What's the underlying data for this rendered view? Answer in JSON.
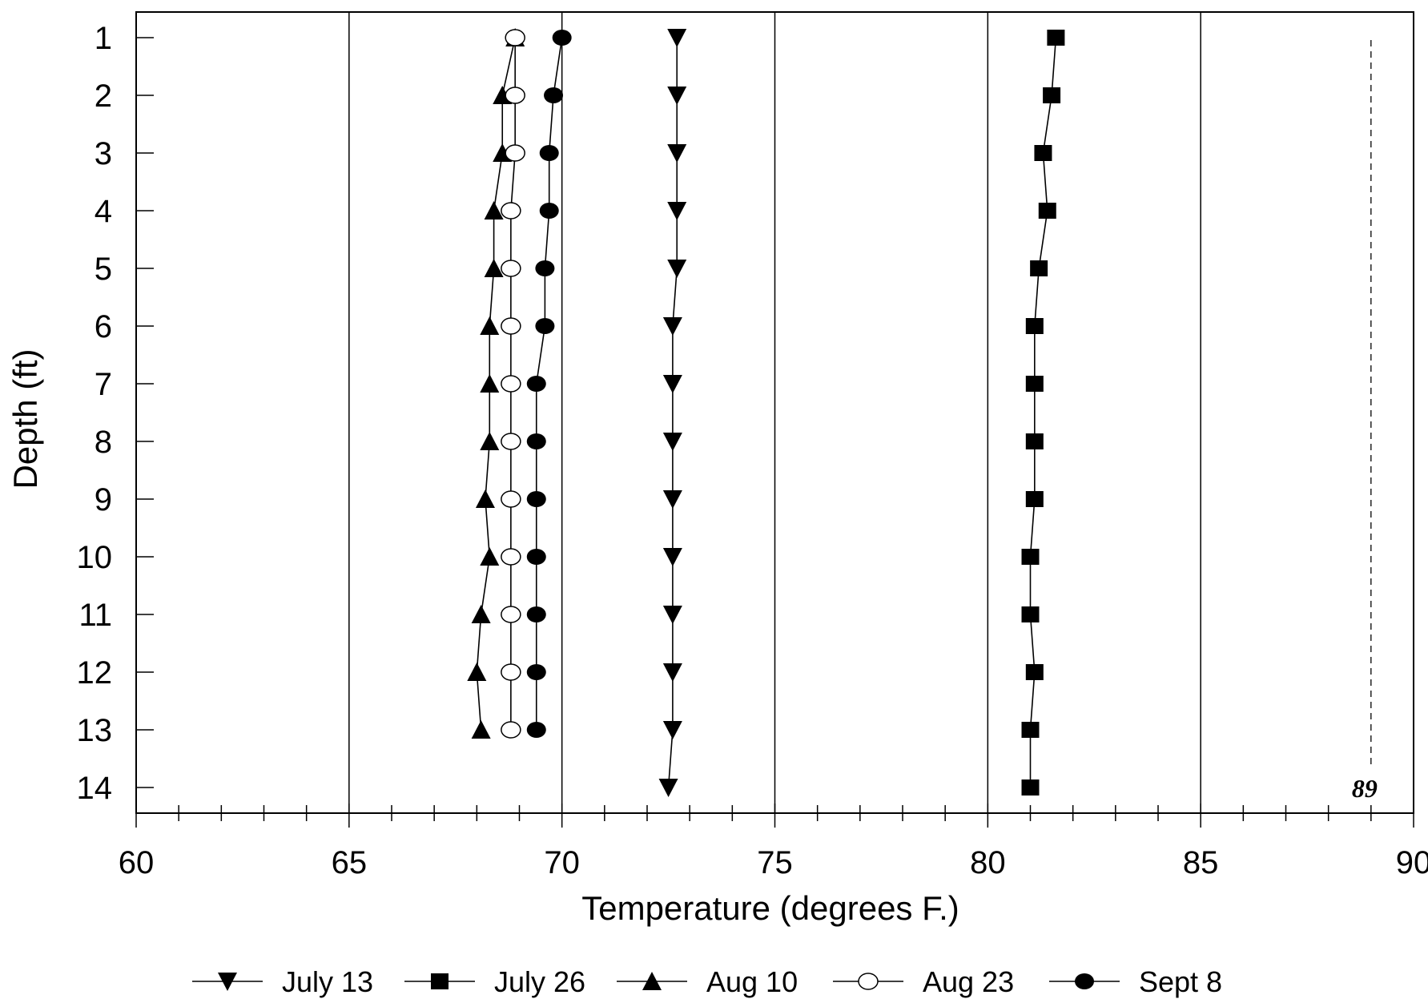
{
  "chart_data": {
    "type": "line",
    "title": "",
    "xlabel": "Temperature (degrees F.)",
    "ylabel": "Depth (ft)",
    "xlim": [
      60,
      90
    ],
    "ylim": [
      14,
      1
    ],
    "x_ticks": [
      60,
      65,
      70,
      75,
      80,
      85,
      90
    ],
    "y_ticks": [
      1,
      2,
      3,
      4,
      5,
      6,
      7,
      8,
      9,
      10,
      11,
      12,
      13,
      14
    ],
    "grid": "vertical major",
    "legend_position": "bottom",
    "series": [
      {
        "name": "July 13",
        "marker": "triangle-down",
        "color": "#000000",
        "points": [
          [
            72.7,
            1
          ],
          [
            72.7,
            2
          ],
          [
            72.7,
            3
          ],
          [
            72.7,
            4
          ],
          [
            72.7,
            5
          ],
          [
            72.6,
            6
          ],
          [
            72.6,
            7
          ],
          [
            72.6,
            8
          ],
          [
            72.6,
            9
          ],
          [
            72.6,
            10
          ],
          [
            72.6,
            11
          ],
          [
            72.6,
            12
          ],
          [
            72.6,
            13
          ],
          [
            72.5,
            14
          ]
        ]
      },
      {
        "name": "July 26",
        "marker": "square",
        "color": "#000000",
        "points": [
          [
            81.6,
            1
          ],
          [
            81.5,
            2
          ],
          [
            81.3,
            3
          ],
          [
            81.4,
            4
          ],
          [
            81.2,
            5
          ],
          [
            81.1,
            6
          ],
          [
            81.1,
            7
          ],
          [
            81.1,
            8
          ],
          [
            81.1,
            9
          ],
          [
            81.0,
            10
          ],
          [
            81.0,
            11
          ],
          [
            81.1,
            12
          ],
          [
            81.0,
            13
          ],
          [
            81.0,
            14
          ]
        ]
      },
      {
        "name": "Aug 10",
        "marker": "triangle-up",
        "color": "#000000",
        "points": [
          [
            68.9,
            1
          ],
          [
            68.6,
            2
          ],
          [
            68.6,
            3
          ],
          [
            68.4,
            4
          ],
          [
            68.4,
            5
          ],
          [
            68.3,
            6
          ],
          [
            68.3,
            7
          ],
          [
            68.3,
            8
          ],
          [
            68.2,
            9
          ],
          [
            68.3,
            10
          ],
          [
            68.1,
            11
          ],
          [
            68.0,
            12
          ],
          [
            68.1,
            13
          ]
        ]
      },
      {
        "name": "Aug 23",
        "marker": "circle-open",
        "color": "#000000",
        "points": [
          [
            68.9,
            1
          ],
          [
            68.9,
            2
          ],
          [
            68.9,
            3
          ],
          [
            68.8,
            4
          ],
          [
            68.8,
            5
          ],
          [
            68.8,
            6
          ],
          [
            68.8,
            7
          ],
          [
            68.8,
            8
          ],
          [
            68.8,
            9
          ],
          [
            68.8,
            10
          ],
          [
            68.8,
            11
          ],
          [
            68.8,
            12
          ],
          [
            68.8,
            13
          ]
        ]
      },
      {
        "name": "Sept 8",
        "marker": "circle-filled",
        "color": "#000000",
        "points": [
          [
            70.0,
            1
          ],
          [
            69.8,
            2
          ],
          [
            69.7,
            3
          ],
          [
            69.7,
            4
          ],
          [
            69.6,
            5
          ],
          [
            69.6,
            6
          ],
          [
            69.4,
            7
          ],
          [
            69.4,
            8
          ],
          [
            69.4,
            9
          ],
          [
            69.4,
            10
          ],
          [
            69.4,
            11
          ],
          [
            69.4,
            12
          ],
          [
            69.4,
            13
          ]
        ]
      }
    ],
    "annotations": [
      {
        "text": "89",
        "x": 89,
        "style": "dashed vertical line"
      }
    ]
  }
}
